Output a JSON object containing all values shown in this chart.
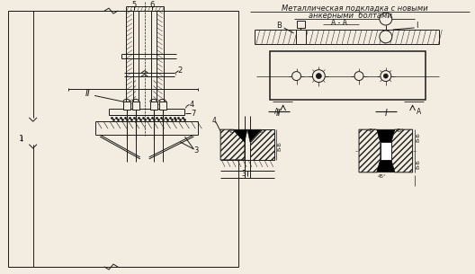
{
  "bg_color": "#f2ede0",
  "line_color": "#1a1a1a",
  "title_line1": "Металлическая подкладка с новыми",
  "title_line2": "анкерными  болтами",
  "label_AA": "А - А",
  "label_B": "В",
  "label_I": "I",
  "label_1": "1",
  "label_2": "2",
  "label_3": "3",
  "label_4": "4",
  "label_5": "5",
  "label_6": "6",
  "label_7": "7",
  "label_II": "II"
}
